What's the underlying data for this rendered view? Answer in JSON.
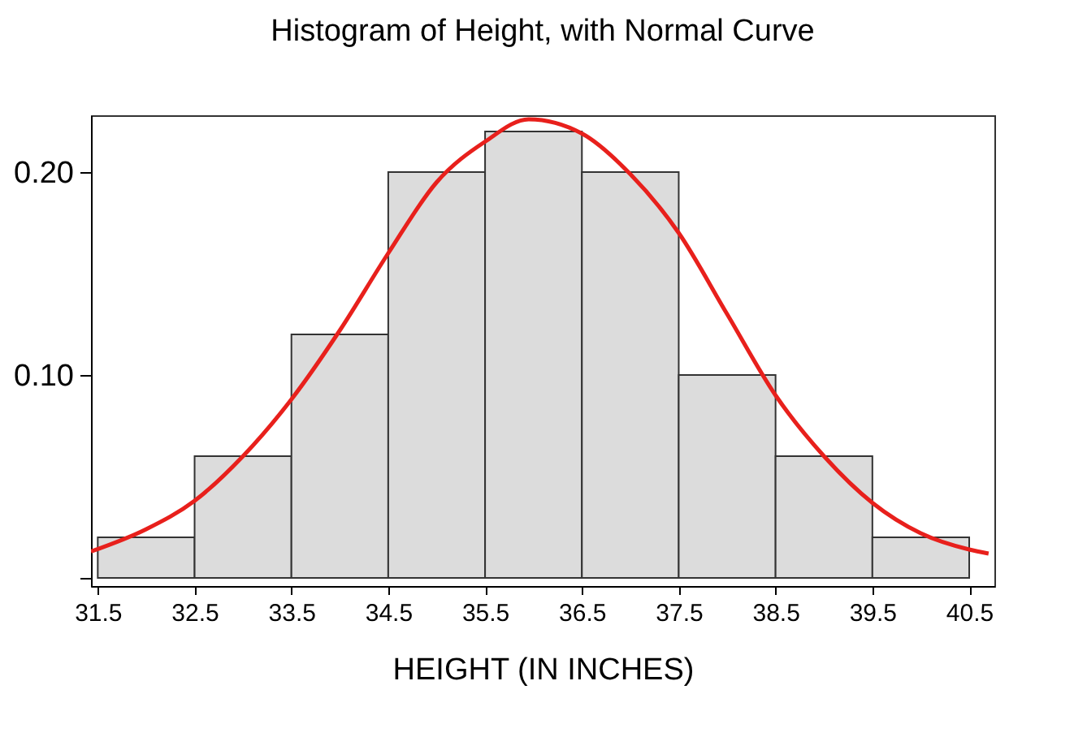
{
  "chart_data": {
    "type": "histogram",
    "title": "Histogram of Height, with Normal Curve",
    "xlabel": "HEIGHT (IN INCHES)",
    "bins": [
      31.5,
      32.5,
      33.5,
      34.5,
      35.5,
      36.5,
      37.5,
      38.5,
      39.5,
      40.5
    ],
    "series": [
      {
        "color": "#dcdcdc",
        "values": [
          0.02,
          0.06,
          0.12,
          0.2,
          0.22,
          0.2,
          0.1,
          0.06,
          0.02
        ]
      },
      {
        "type": "line",
        "color": "#e8201c",
        "x": [
          31.43,
          32.0,
          32.5,
          33.0,
          33.5,
          34.0,
          34.5,
          35.0,
          35.5,
          35.95,
          36.5,
          37.0,
          37.5,
          38.0,
          38.5,
          39.0,
          39.5,
          40.0,
          40.5,
          40.7
        ],
        "values": [
          0.013,
          0.024,
          0.038,
          0.06,
          0.088,
          0.122,
          0.16,
          0.195,
          0.215,
          0.226,
          0.219,
          0.199,
          0.17,
          0.13,
          0.09,
          0.06,
          0.037,
          0.022,
          0.014,
          0.012
        ]
      }
    ],
    "xlim": [
      31.43,
      40.76
    ],
    "ylim": [
      -0.004,
      0.228
    ],
    "xticks": [
      31.5,
      32.5,
      33.5,
      34.5,
      35.5,
      36.5,
      37.5,
      38.5,
      39.5,
      40.5
    ],
    "yticks": [
      {
        "value": 0,
        "label": null
      },
      {
        "value": 0.1,
        "label": "0.10"
      },
      {
        "value": 0.2,
        "label": "0.20"
      }
    ],
    "grid": false
  }
}
